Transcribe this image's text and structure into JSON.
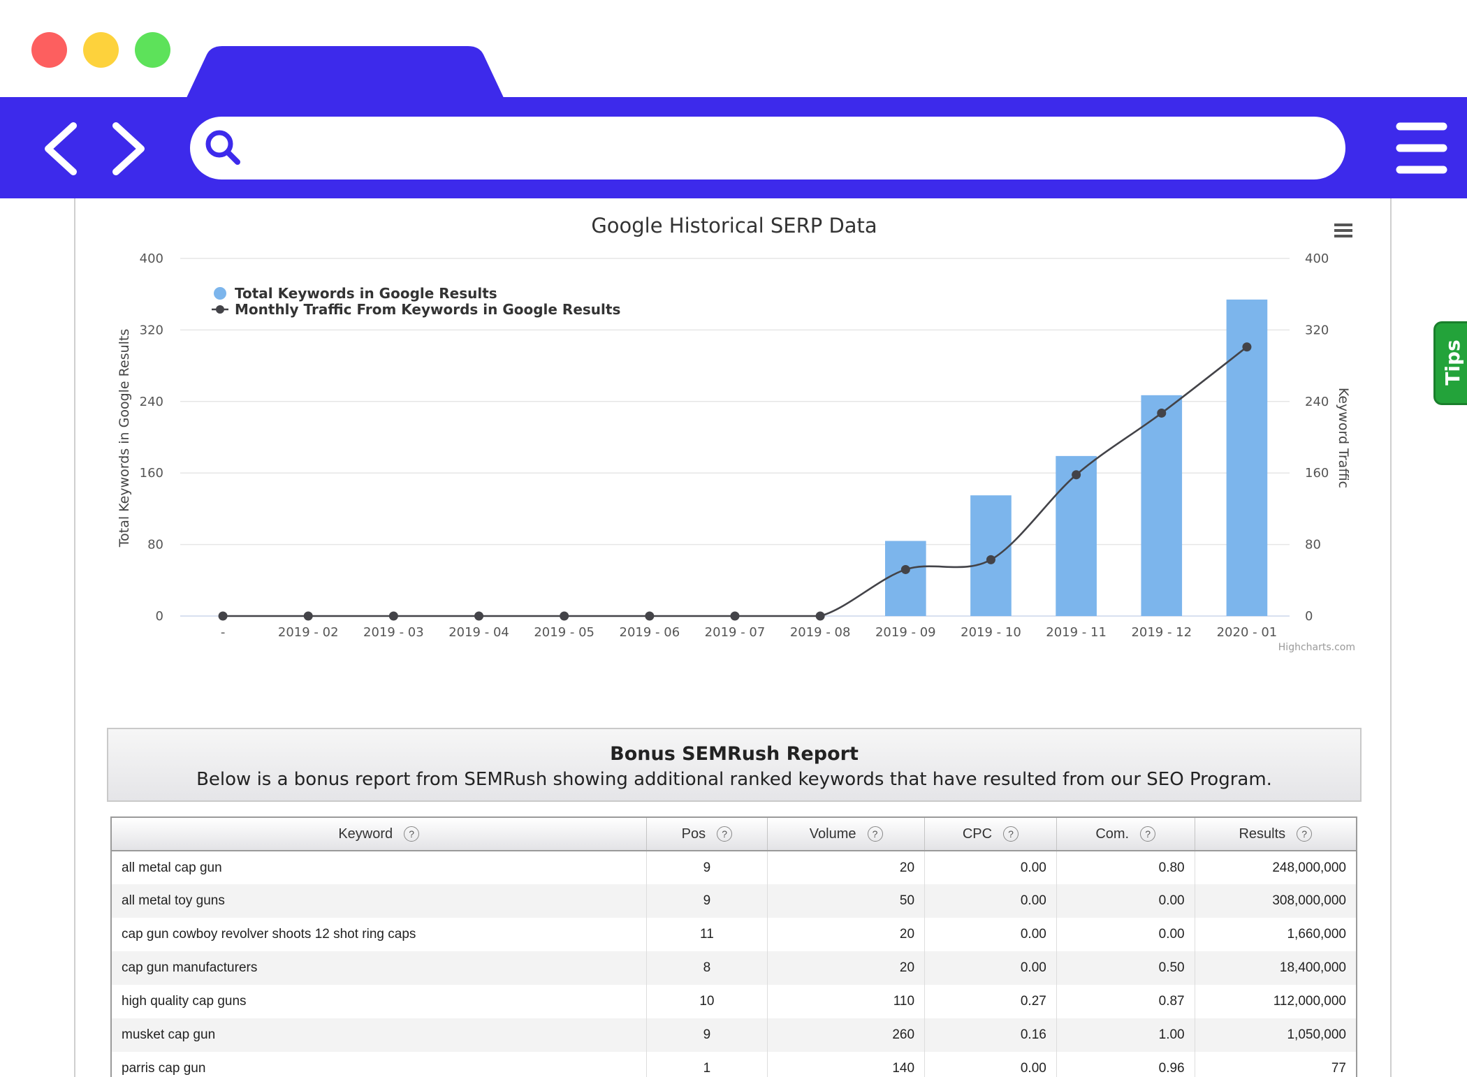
{
  "browser": {
    "address_placeholder": "",
    "colors": {
      "toolbar": "#3d2aeb",
      "close": "#fd5f5f",
      "minimize": "#fdd23c",
      "maximize": "#5de25a"
    }
  },
  "chart": {
    "title": "Google Historical SERP Data",
    "left_axis_title": "Total Keywords in Google Results",
    "right_axis_title": "Keyword Traffic",
    "left_ticks": [
      "0",
      "80",
      "160",
      "240",
      "320",
      "400"
    ],
    "right_ticks": [
      "0",
      "80",
      "160",
      "240",
      "320",
      "400"
    ],
    "credit": "Highcharts.com",
    "bar_color": "#7cb5ec",
    "line_color": "#434348"
  },
  "chart_data": {
    "type": "bar",
    "title": "Google Historical SERP Data",
    "categories": [
      "-",
      "2019 - 02",
      "2019 - 03",
      "2019 - 04",
      "2019 - 05",
      "2019 - 06",
      "2019 - 07",
      "2019 - 08",
      "2019 - 09",
      "2019 - 10",
      "2019 - 11",
      "2019 - 12",
      "2020 - 01"
    ],
    "series": [
      {
        "name": "Total Keywords in Google Results",
        "type": "bar",
        "axis": "left",
        "values": [
          0,
          0,
          0,
          0,
          0,
          0,
          0,
          0,
          84,
          135,
          179,
          247,
          354
        ]
      },
      {
        "name": "Monthly Traffic From Keywords in Google Results",
        "type": "line",
        "axis": "right",
        "values": [
          0,
          0,
          0,
          0,
          0,
          0,
          0,
          0,
          52,
          63,
          158,
          227,
          301
        ]
      }
    ],
    "ylabel": "Total Keywords in Google Results",
    "y2label": "Keyword Traffic",
    "ylim": [
      0,
      400
    ],
    "y2lim": [
      0,
      400
    ],
    "grid": true,
    "legend_position": "top-left"
  },
  "tips_label": "Tips",
  "bonus": {
    "title": "Bonus SEMRush Report",
    "subtitle": "Below is a bonus report from SEMRush showing additional ranked keywords that have resulted from our SEO Program."
  },
  "table": {
    "columns": [
      "Keyword",
      "Pos",
      "Volume",
      "CPC",
      "Com.",
      "Results"
    ],
    "help_symbol": "?",
    "rows": [
      [
        "all metal cap gun",
        "9",
        "20",
        "0.00",
        "0.80",
        "248,000,000"
      ],
      [
        "all metal toy guns",
        "9",
        "50",
        "0.00",
        "0.00",
        "308,000,000"
      ],
      [
        "cap gun cowboy revolver shoots 12 shot ring caps",
        "11",
        "20",
        "0.00",
        "0.00",
        "1,660,000"
      ],
      [
        "cap gun manufacturers",
        "8",
        "20",
        "0.00",
        "0.50",
        "18,400,000"
      ],
      [
        "high quality cap guns",
        "10",
        "110",
        "0.27",
        "0.87",
        "112,000,000"
      ],
      [
        "musket cap gun",
        "9",
        "260",
        "0.16",
        "1.00",
        "1,050,000"
      ],
      [
        "parris cap gun",
        "1",
        "140",
        "0.00",
        "0.96",
        "77"
      ]
    ]
  }
}
